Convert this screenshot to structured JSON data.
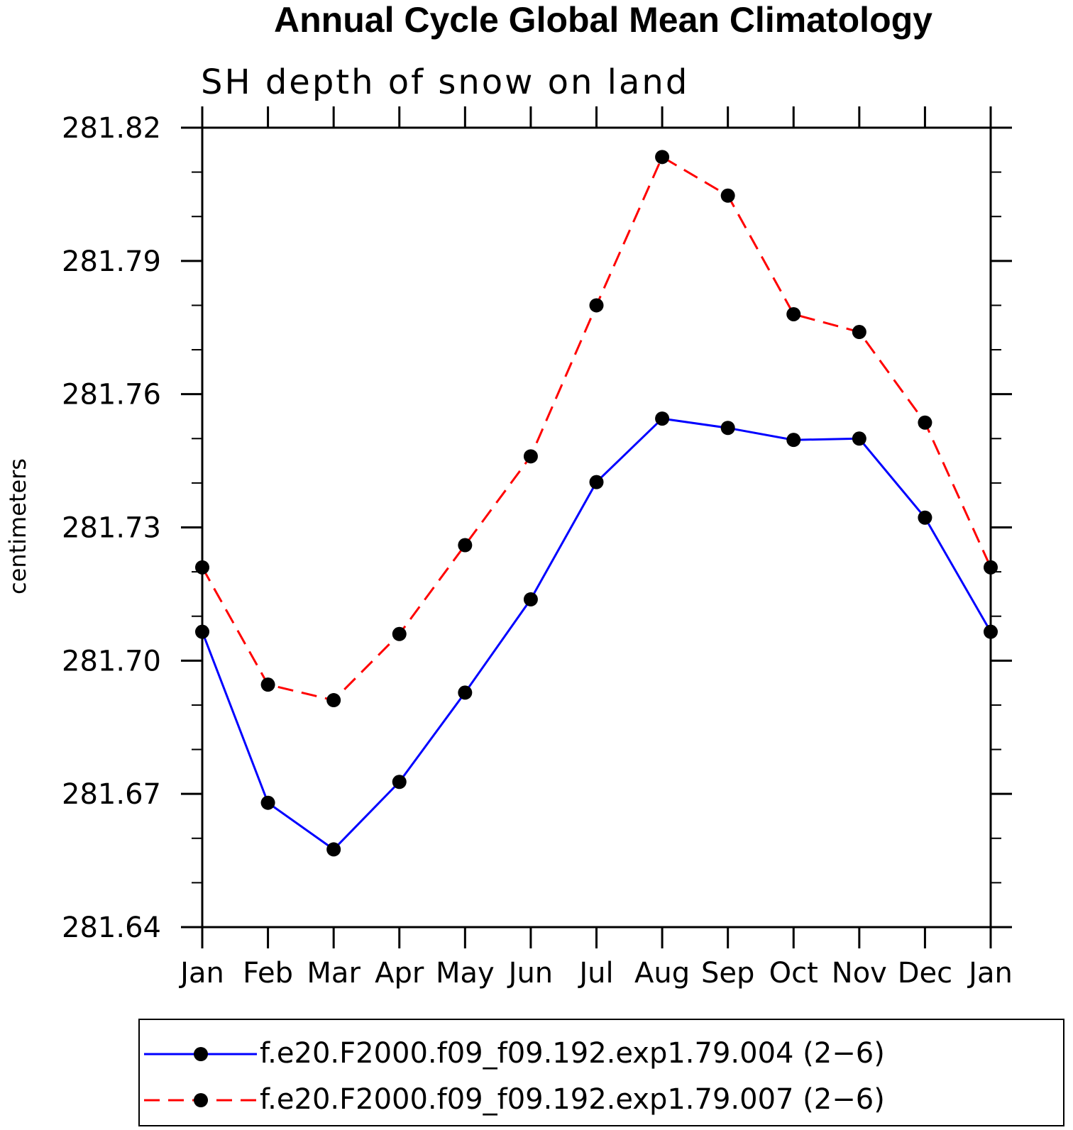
{
  "chart_data": {
    "type": "line",
    "title": "Annual Cycle Global Mean Climatology",
    "subtitle": "SH depth of snow on land",
    "xlabel": "",
    "ylabel": "centimeters",
    "categories": [
      "Jan",
      "Feb",
      "Mar",
      "Apr",
      "May",
      "Jun",
      "Jul",
      "Aug",
      "Sep",
      "Oct",
      "Nov",
      "Dec",
      "Jan"
    ],
    "ylim": [
      281.64,
      281.82
    ],
    "yticks": [
      "281.64",
      "281.67",
      "281.70",
      "281.73",
      "281.76",
      "281.79",
      "281.82"
    ],
    "grid": false,
    "legend_position": "bottom",
    "series": [
      {
        "name": "f.e20.F2000.f09_f09.192.exp1.79.004 (2−6)",
        "color": "#0000ff",
        "dash": "solid",
        "marker": "circle",
        "values": [
          281.7065,
          281.668,
          281.6575,
          281.6727,
          281.6928,
          281.7138,
          281.7402,
          281.7545,
          281.7524,
          281.7497,
          281.75,
          281.7322,
          281.7065
        ]
      },
      {
        "name": "f.e20.F2000.f09_f09.192.exp1.79.007 (2−6)",
        "color": "#ff0000",
        "dash": "dashed",
        "marker": "circle",
        "values": [
          281.721,
          281.6946,
          281.6911,
          281.706,
          281.726,
          281.746,
          281.78,
          281.8134,
          281.8047,
          281.778,
          281.774,
          281.7536,
          281.721
        ]
      }
    ]
  }
}
